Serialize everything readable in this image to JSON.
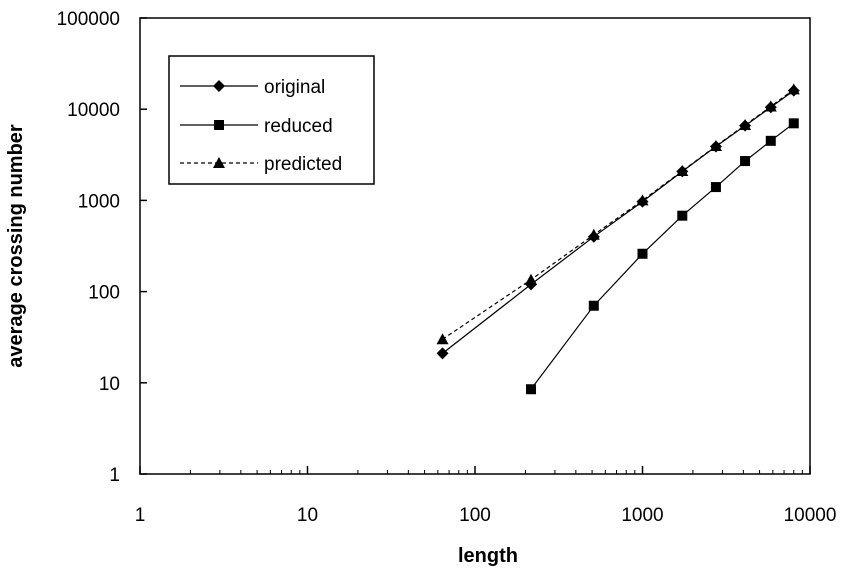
{
  "chart_data": {
    "type": "line",
    "x_scale": "log",
    "y_scale": "log",
    "xlabel": "length",
    "ylabel": "average crossing number",
    "xlim": [
      1,
      10000
    ],
    "ylim": [
      1,
      100000
    ],
    "x_ticks": [
      1,
      10,
      100,
      1000,
      10000
    ],
    "y_ticks": [
      1,
      10,
      100,
      1000,
      10000,
      100000
    ],
    "x_tick_labels": [
      "1",
      "10",
      "100",
      "1000",
      "10000"
    ],
    "y_tick_labels": [
      "1",
      "10",
      "100",
      "1000",
      "10000",
      "100000"
    ],
    "legend_position": "top-left",
    "series": [
      {
        "name": "original",
        "marker": "diamond",
        "line": "solid",
        "x": [
          64,
          216,
          512,
          1000,
          1728,
          2744,
          4096,
          5832,
          8000
        ],
        "y": [
          21,
          120,
          400,
          970,
          2080,
          3900,
          6600,
          10500,
          16000
        ]
      },
      {
        "name": "reduced",
        "marker": "square",
        "line": "solid",
        "x": [
          216,
          512,
          1000,
          1728,
          2744,
          4096,
          5832,
          8000
        ],
        "y": [
          8.5,
          70,
          260,
          680,
          1400,
          2700,
          4500,
          7000
        ]
      },
      {
        "name": "predicted",
        "marker": "triangle",
        "line": "dashed",
        "x": [
          64,
          216,
          512,
          1000,
          1728,
          2744,
          4096,
          5832,
          8000
        ],
        "y": [
          30,
          135,
          420,
          1000,
          2100,
          3950,
          6700,
          10700,
          16500
        ]
      }
    ]
  }
}
